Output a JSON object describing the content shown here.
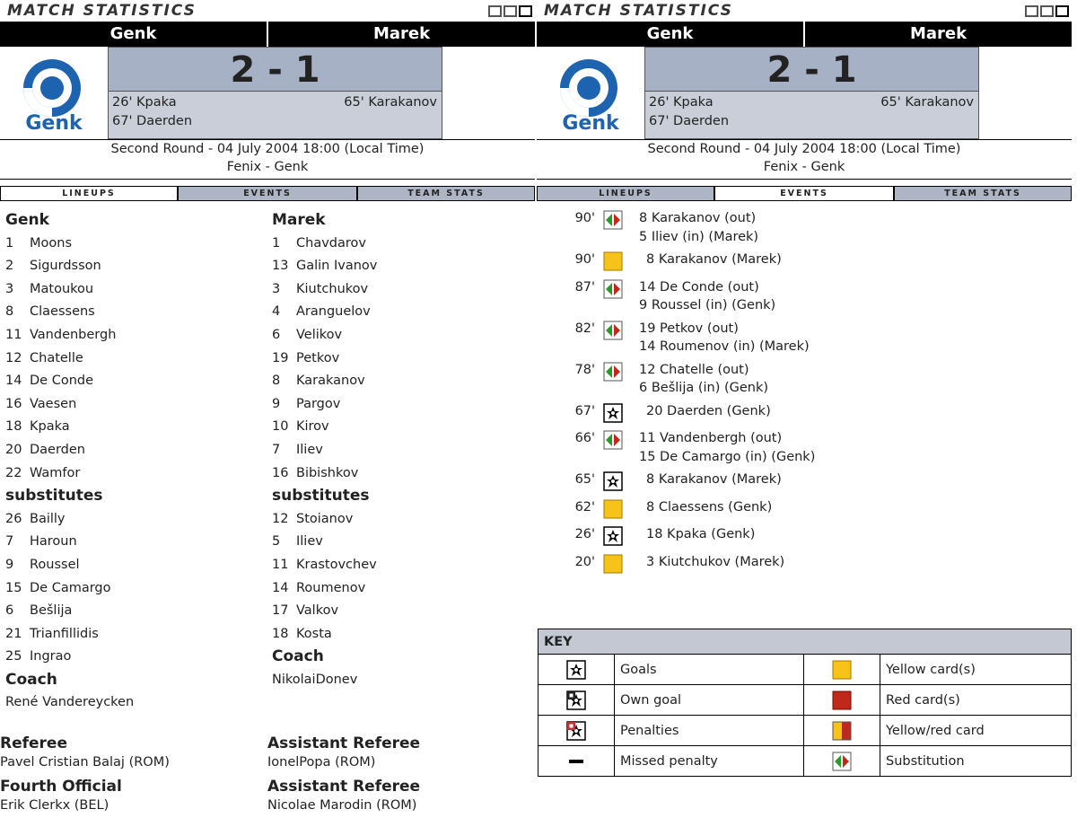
{
  "header": {
    "title": "MATCH STATISTICS",
    "home": "Genk",
    "away": "Marek",
    "score": "2 - 1",
    "home_scorers": [
      "26' Kpaka",
      "67' Daerden"
    ],
    "away_scorers": [
      "65' Karakanov"
    ],
    "round": "Second Round - 04 July 2004 18:00 (Local Time)",
    "venue": "Fenix - Genk",
    "tabs": [
      "LINEUPS",
      "EVENTS",
      "TEAM STATS"
    ]
  },
  "panels": [
    {
      "active_tab": 0
    },
    {
      "active_tab": 1
    }
  ],
  "lineups": [
    {
      "team": "Genk",
      "starters": [
        [
          1,
          "Moons"
        ],
        [
          2,
          "Sigurdsson"
        ],
        [
          3,
          "Matoukou"
        ],
        [
          8,
          "Claessens"
        ],
        [
          11,
          "Vandenbergh"
        ],
        [
          12,
          "Chatelle"
        ],
        [
          14,
          "De Conde"
        ],
        [
          16,
          "Vaesen"
        ],
        [
          18,
          "Kpaka"
        ],
        [
          20,
          "Daerden"
        ],
        [
          22,
          "Wamfor"
        ]
      ],
      "subs_label": "substitutes",
      "subs": [
        [
          26,
          "Bailly"
        ],
        [
          7,
          "Haroun"
        ],
        [
          9,
          "Roussel"
        ],
        [
          15,
          "De Camargo"
        ],
        [
          6,
          "Bešlija"
        ],
        [
          21,
          "Trianfillidis"
        ],
        [
          25,
          "Ingrao"
        ]
      ],
      "coach_label": "Coach",
      "coach": "René Vandereycken"
    },
    {
      "team": "Marek",
      "starters": [
        [
          1,
          "Chavdarov"
        ],
        [
          13,
          "Galin Ivanov"
        ],
        [
          3,
          "Kiutchukov"
        ],
        [
          4,
          "Aranguelov"
        ],
        [
          6,
          "Velikov"
        ],
        [
          19,
          "Petkov"
        ],
        [
          8,
          "Karakanov"
        ],
        [
          9,
          "Pargov"
        ],
        [
          10,
          "Kirov"
        ],
        [
          7,
          "Iliev"
        ],
        [
          16,
          "Bibishkov"
        ]
      ],
      "subs_label": "substitutes",
      "subs": [
        [
          12,
          "Stoianov"
        ],
        [
          5,
          "Iliev"
        ],
        [
          11,
          "Krastovchev"
        ],
        [
          14,
          "Roumenov"
        ],
        [
          17,
          "Valkov"
        ],
        [
          18,
          "Kosta"
        ]
      ],
      "coach_label": "Coach",
      "coach": "NikolaiDonev"
    }
  ],
  "officials": [
    {
      "role": "Referee",
      "name": "Pavel Cristian Balaj (ROM)"
    },
    {
      "role": "Assistant Referee",
      "name": "IonelPopa (ROM)"
    },
    {
      "role": "Fourth Official",
      "name": "Erik Clerkx (BEL)"
    },
    {
      "role": "Assistant Referee",
      "name": "Nicolae Marodin (ROM)"
    }
  ],
  "events": [
    {
      "minute": "90'",
      "icon": "sub",
      "lines": [
        "8 Karakanov (out)",
        "5 Iliev (in) (Marek)"
      ]
    },
    {
      "minute": "90'",
      "icon": "yellow",
      "lines": [
        "8 Karakanov (Marek)"
      ]
    },
    {
      "minute": "87'",
      "icon": "sub",
      "lines": [
        "14 De Conde (out)",
        "9 Roussel (in) (Genk)"
      ]
    },
    {
      "minute": "82'",
      "icon": "sub",
      "lines": [
        "19 Petkov (out)",
        "14 Roumenov (in) (Marek)"
      ]
    },
    {
      "minute": "78'",
      "icon": "sub",
      "lines": [
        "12 Chatelle (out)",
        "6 Bešlija (in) (Genk)"
      ]
    },
    {
      "minute": "67'",
      "icon": "goal",
      "lines": [
        "20 Daerden (Genk)"
      ]
    },
    {
      "minute": "66'",
      "icon": "sub",
      "lines": [
        "11 Vandenbergh (out)",
        "15 De Camargo (in) (Genk)"
      ]
    },
    {
      "minute": "65'",
      "icon": "goal",
      "lines": [
        "8 Karakanov (Marek)"
      ]
    },
    {
      "minute": "62'",
      "icon": "yellow",
      "lines": [
        "8 Claessens (Genk)"
      ]
    },
    {
      "minute": "26'",
      "icon": "goal",
      "lines": [
        "18 Kpaka (Genk)"
      ]
    },
    {
      "minute": "20'",
      "icon": "yellow",
      "lines": [
        "3 Kiutchukov (Marek)"
      ]
    }
  ],
  "key": {
    "title": "KEY",
    "items": [
      {
        "icon": "goal",
        "label": "Goals"
      },
      {
        "icon": "yellow",
        "label": "Yellow card(s)"
      },
      {
        "icon": "own",
        "label": "Own goal"
      },
      {
        "icon": "red",
        "label": "Red card(s)"
      },
      {
        "icon": "pen",
        "label": "Penalties"
      },
      {
        "icon": "yellowred",
        "label": "Yellow/red card"
      },
      {
        "icon": "missed",
        "label": "Missed penalty"
      },
      {
        "icon": "sub",
        "label": "Substitution"
      }
    ]
  }
}
